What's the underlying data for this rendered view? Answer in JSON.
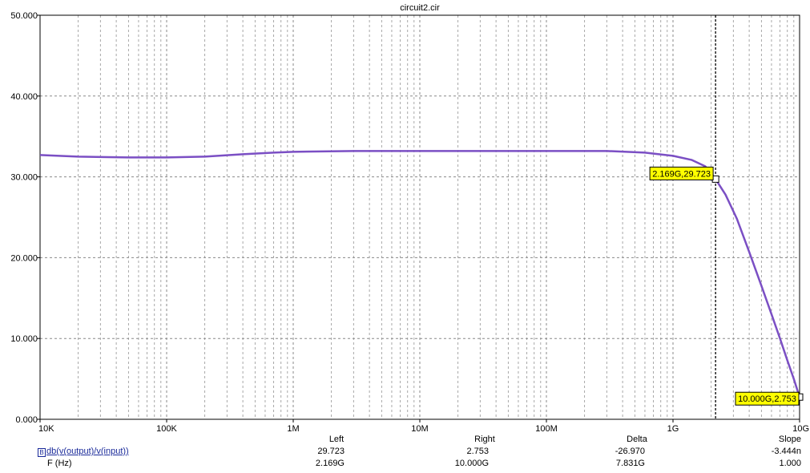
{
  "chart_data": {
    "type": "line",
    "title": "circuit2.cir",
    "xscale": "log",
    "xlim": [
      10000,
      10000000000
    ],
    "ylim": [
      0,
      50
    ],
    "y_tick_labels": [
      "0.000",
      "10.000",
      "20.000",
      "30.000",
      "40.000",
      "50.000"
    ],
    "y_ticks": [
      0,
      10,
      20,
      30,
      40,
      50
    ],
    "x_tick_labels": [
      "10K",
      "100K",
      "1M",
      "10M",
      "100M",
      "1G",
      "10G"
    ],
    "x_ticks": [
      10000,
      100000,
      1000000,
      10000000,
      100000000,
      1000000000,
      10000000000
    ],
    "grid": true,
    "series": [
      {
        "name": "db(v(output)/v(input))",
        "color": "#7b4fc4",
        "x": [
          10000,
          20000,
          50000,
          100000,
          200000,
          400000,
          700000,
          1000000,
          3000000,
          10000000,
          30000000,
          100000000,
          300000000,
          600000000,
          1000000000,
          1400000000,
          1800000000,
          2169000000,
          2600000000,
          3200000000,
          4000000000,
          5000000000,
          6000000000,
          7000000000,
          8000000000,
          9000000000,
          10000000000
        ],
        "y": [
          32.7,
          32.5,
          32.4,
          32.4,
          32.5,
          32.8,
          33.0,
          33.1,
          33.2,
          33.2,
          33.2,
          33.2,
          33.2,
          33.0,
          32.6,
          32.1,
          31.3,
          29.723,
          27.8,
          24.8,
          20.7,
          16.5,
          13.0,
          10.0,
          7.3,
          5.0,
          2.753
        ]
      }
    ],
    "annotations": [
      {
        "label": "2.169G,29.723",
        "x": 2169000000,
        "y": 29.723
      },
      {
        "label": "10.000G,2.753",
        "x": 10000000000,
        "y": 2.753
      }
    ],
    "cursor_x": 2169000000
  },
  "cursor_table": {
    "headers": {
      "left": "Left",
      "right": "Right",
      "delta": "Delta",
      "slope": "Slope"
    },
    "trace_box": "B",
    "rows": [
      {
        "label": "db(v(output)/v(input))",
        "left": "29.723",
        "right": "2.753",
        "delta": "-26.970",
        "slope": "-3.444n"
      },
      {
        "label": "F (Hz)",
        "left": "2.169G",
        "right": "10.000G",
        "delta": "7.831G",
        "slope": "1.000"
      }
    ]
  }
}
